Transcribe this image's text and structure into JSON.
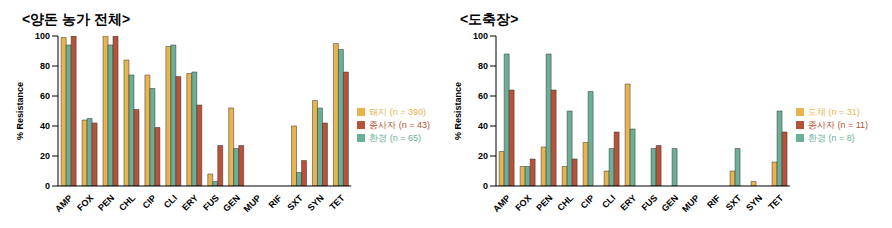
{
  "chart_data": [
    {
      "type": "bar",
      "title": "<양돈 농가 전체>",
      "ylabel": "% Resistance",
      "categories": [
        "AMP",
        "FOX",
        "PEN",
        "CHL",
        "CIP",
        "CLI",
        "ERY",
        "FUS",
        "GEN",
        "MUP",
        "RIF",
        "SXT",
        "SYN",
        "TET"
      ],
      "series": [
        {
          "name": "돼지 (n = 390)",
          "color": "#E8B451",
          "values": [
            99,
            44,
            100,
            84,
            74,
            93,
            75,
            8,
            52,
            0,
            0,
            40,
            57,
            95
          ]
        },
        {
          "name": "환경 (n = 65)",
          "color": "#6BAF96",
          "values": [
            94,
            45,
            94,
            74,
            65,
            94,
            76,
            3,
            25,
            0,
            0,
            9,
            52,
            91
          ]
        },
        {
          "name": "종사자 (n = 43)",
          "color": "#B5533B",
          "values": [
            100,
            42,
            100,
            51,
            39,
            73,
            54,
            27,
            27,
            0,
            0,
            17,
            42,
            76
          ]
        }
      ],
      "ylim": [
        0,
        100
      ],
      "yticks": [
        0,
        20,
        40,
        60,
        80,
        100
      ],
      "grid": false,
      "legend": "right"
    },
    {
      "type": "bar",
      "title": "<도축장>",
      "ylabel": "% Resistance",
      "categories": [
        "AMP",
        "FOX",
        "PEN",
        "CHL",
        "CIP",
        "CLI",
        "ERY",
        "FUS",
        "GEN",
        "MUP",
        "RIF",
        "SXT",
        "SYN",
        "TET"
      ],
      "series": [
        {
          "name": "도체 (n = 31)",
          "color": "#E8B451",
          "values": [
            23,
            13,
            26,
            13,
            29,
            10,
            68,
            0,
            0,
            0,
            0,
            10,
            3,
            16
          ]
        },
        {
          "name": "환경 (n = 8)",
          "color": "#6BAF96",
          "values": [
            88,
            13,
            88,
            50,
            63,
            25,
            38,
            25,
            25,
            0,
            0,
            25,
            0,
            50
          ]
        },
        {
          "name": "종사자 (n = 11)",
          "color": "#B5533B",
          "values": [
            64,
            18,
            64,
            18,
            0,
            36,
            0,
            27,
            0,
            0,
            0,
            0,
            0,
            36
          ]
        }
      ],
      "ylim": [
        0,
        100
      ],
      "yticks": [
        0,
        20,
        40,
        60,
        80,
        100
      ],
      "grid": false,
      "legend": "right"
    }
  ]
}
